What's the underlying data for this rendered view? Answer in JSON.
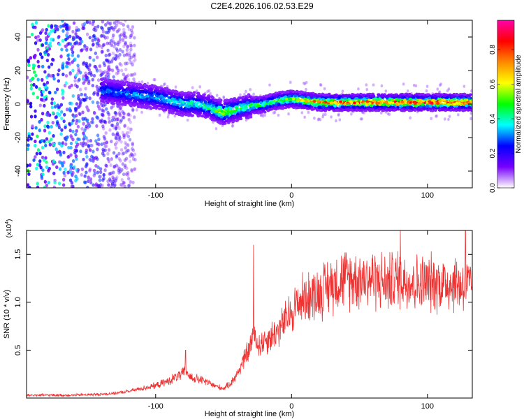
{
  "title": "C2E4.2026.106.02.53.E29",
  "chart_data": [
    {
      "type": "heatmap",
      "title": "C2E4.2026.106.02.53.E29",
      "xlabel": "Height of straight line (km)",
      "ylabel": "Frequency (Hz)",
      "xlim": [
        -195,
        133
      ],
      "ylim": [
        -50,
        50
      ],
      "xticks": [
        -100,
        0,
        100
      ],
      "xtick_labels": [
        "-100",
        "0",
        "100"
      ],
      "yticks": [
        -40,
        -20,
        0,
        20,
        40
      ],
      "ytick_labels": [
        "-40",
        "-20",
        "0",
        "20",
        "40"
      ],
      "colorbar": {
        "label": "Normalized spectral amplitude",
        "range": [
          0,
          0.97
        ],
        "ticks": [
          0.0,
          0.2,
          0.4,
          0.6,
          0.8
        ],
        "tick_labels": [
          "0.0",
          "0.2",
          "0.4",
          "0.6",
          "0.8"
        ],
        "colors": [
          "#ffffff",
          "#7700ff",
          "#0000ff",
          "#00ffff",
          "#00ff00",
          "#ffff00",
          "#ff8800",
          "#ff0000",
          "#ff00aa"
        ]
      },
      "noise_region_x": [
        -195,
        -120
      ],
      "ridge_center": {
        "x": [
          -140,
          -120,
          -100,
          -90,
          -80,
          -70,
          -60,
          -55,
          -50,
          -45,
          -40,
          -30,
          -20,
          -10,
          0,
          10,
          20,
          30,
          40,
          50,
          60,
          70,
          80,
          90,
          100,
          110,
          120,
          133
        ],
        "y": [
          8,
          6,
          4,
          2,
          0,
          0,
          -2,
          -4,
          -5,
          -4,
          -3,
          -1,
          0,
          2,
          3,
          2,
          1,
          1,
          1,
          1,
          1,
          1,
          1,
          1,
          1,
          1,
          1,
          1
        ]
      },
      "peak_amplitude": {
        "x": [
          -140,
          -120,
          -100,
          -80,
          -60,
          -50,
          -40,
          -20,
          0,
          10,
          20,
          40,
          60,
          80,
          100,
          120,
          133
        ],
        "value": [
          0.35,
          0.35,
          0.4,
          0.45,
          0.5,
          0.7,
          0.5,
          0.55,
          0.6,
          0.75,
          0.85,
          0.88,
          0.9,
          0.9,
          0.92,
          0.92,
          0.9
        ]
      }
    },
    {
      "type": "line",
      "xlabel": "Height of straight line (km)",
      "ylabel": "SNR (10 * v/v)",
      "y_multiplier": "(x10^4)",
      "y_multiplier_base": "(x10",
      "y_multiplier_exp": "4",
      "y_multiplier_close": ")",
      "xlim": [
        -195,
        133
      ],
      "ylim": [
        0,
        1.75
      ],
      "xticks": [
        -100,
        0,
        100
      ],
      "xtick_labels": [
        "-100",
        "0",
        "100"
      ],
      "yticks": [
        0.5,
        1.0,
        1.5
      ],
      "ytick_labels": [
        "0.5",
        "1.0",
        "1.5"
      ],
      "color": "#ee3333",
      "series": [
        {
          "name": "SNR",
          "x": [
            -195,
            -180,
            -160,
            -140,
            -130,
            -120,
            -110,
            -100,
            -90,
            -85,
            -80,
            -78,
            -75,
            -70,
            -65,
            -60,
            -55,
            -50,
            -45,
            -40,
            -35,
            -30,
            -28,
            -25,
            -20,
            -15,
            -10,
            -5,
            0,
            5,
            10,
            20,
            30,
            40,
            50,
            60,
            70,
            80,
            90,
            100,
            110,
            120,
            133
          ],
          "y": [
            0.03,
            0.03,
            0.03,
            0.04,
            0.05,
            0.07,
            0.1,
            0.13,
            0.18,
            0.22,
            0.25,
            0.3,
            0.22,
            0.2,
            0.18,
            0.15,
            0.12,
            0.1,
            0.15,
            0.25,
            0.4,
            0.55,
            0.7,
            0.55,
            0.6,
            0.65,
            0.7,
            0.8,
            0.9,
            1.0,
            1.05,
            1.1,
            1.2,
            1.25,
            1.25,
            1.25,
            1.2,
            1.25,
            1.2,
            1.2,
            1.2,
            1.2,
            1.15
          ]
        }
      ],
      "spikes": [
        {
          "x": -28,
          "y": 1.6
        },
        {
          "x": -78,
          "y": 0.5
        },
        {
          "x": 80,
          "y": 1.75
        },
        {
          "x": 128,
          "y": 1.75
        }
      ]
    }
  ]
}
